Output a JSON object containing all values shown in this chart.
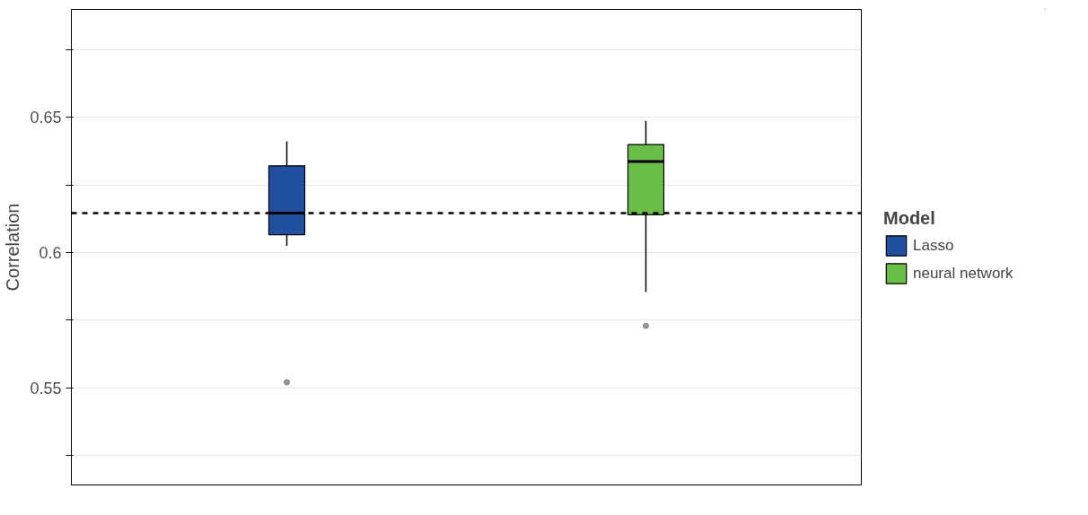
{
  "chart_data": {
    "type": "box",
    "ylabel": "Correlation",
    "legend_title": "Model",
    "categories": [
      null,
      null
    ],
    "series": [
      {
        "name": "Lasso",
        "color": "#2150a0",
        "boxes": [
          {
            "low": 0.6025,
            "q1": 0.6066,
            "median": 0.6146,
            "q3": 0.6321,
            "high": 0.6412,
            "outliers": [
              0.552
            ]
          },
          null
        ]
      },
      {
        "name": "neural network",
        "color": "#6abd45",
        "boxes": [
          null,
          {
            "low": 0.5854,
            "q1": 0.614,
            "median": 0.6337,
            "q3": 0.64,
            "high": 0.6487,
            "outliers": [
              0.5729
            ]
          }
        ]
      }
    ],
    "ylim": [
      0.514,
      0.69
    ],
    "yticks": [
      {
        "value": 0.525,
        "label": null
      },
      0.55,
      {
        "value": 0.575,
        "label": null
      },
      0.6,
      {
        "value": 0.625,
        "label": null
      },
      0.65,
      {
        "value": 0.675,
        "label": null
      }
    ],
    "ref_lines": [
      {
        "axis": "y",
        "value": 0.6146,
        "line_style": "dashed",
        "color": "#000000"
      }
    ],
    "grid": "y",
    "legend": "right",
    "tick_labels": "y"
  }
}
